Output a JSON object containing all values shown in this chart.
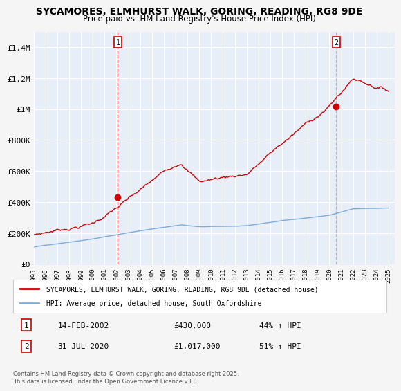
{
  "title": "SYCAMORES, ELMHURST WALK, GORING, READING, RG8 9DE",
  "subtitle": "Price paid vs. HM Land Registry's House Price Index (HPI)",
  "bg_color": "#e8eef8",
  "plot_bg_color": "#e8eef8",
  "red_color": "#cc0000",
  "blue_color": "#7aabdb",
  "grid_color": "#ffffff",
  "dashed_line_color": "#cc0000",
  "dashed_line2_color": "#999999",
  "legend_label_red": "SYCAMORES, ELMHURST WALK, GORING, READING, RG8 9DE (detached house)",
  "legend_label_blue": "HPI: Average price, detached house, South Oxfordshire",
  "point1_date": "14-FEB-2002",
  "point1_price": 430000,
  "point1_label": "£430,000",
  "point1_hpi": "44% ↑ HPI",
  "point2_date": "31-JUL-2020",
  "point2_price": 1017000,
  "point2_label": "£1,017,000",
  "point2_hpi": "51% ↑ HPI",
  "xmin": 1995.0,
  "xmax": 2025.5,
  "ymin": 0,
  "ymax": 1500000,
  "yticks": [
    0,
    200000,
    400000,
    600000,
    800000,
    1000000,
    1200000,
    1400000
  ],
  "ytick_labels": [
    "£0",
    "£200K",
    "£400K",
    "£600K",
    "£800K",
    "£1M",
    "£1.2M",
    "£1.4M"
  ],
  "footnote": "Contains HM Land Registry data © Crown copyright and database right 2025.\nThis data is licensed under the Open Government Licence v3.0.",
  "point1_x": 2002.12,
  "point1_y": 430000,
  "point2_x": 2020.58,
  "point2_y": 1017000
}
